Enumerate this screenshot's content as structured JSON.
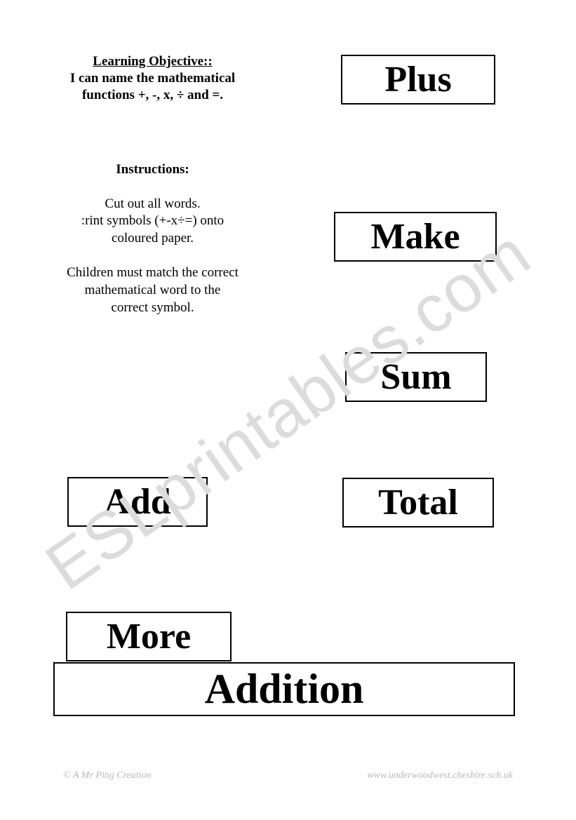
{
  "objective": {
    "title": "Learning Objective::",
    "body": "I can name the mathematical functions +, -, x, ÷ and =."
  },
  "instructions": {
    "title": "Instructions:",
    "line1": "Cut out all words.",
    "line2": ":rint symbols (+-x÷=) onto coloured paper.",
    "line3": "Children must match the correct mathematical word to the correct symbol."
  },
  "cards": {
    "plus": "Plus",
    "make": "Make",
    "sum": "Sum",
    "add": "Add",
    "total": "Total",
    "more": "More",
    "addition": "Addition"
  },
  "footer": {
    "left": "© A Mr Ping Creation",
    "right": "www.underwoodwest.cheshire.sch.uk"
  },
  "watermark": "ESLprintables.com",
  "styles": {
    "card_border_color": "#000000",
    "card_font_size": 52,
    "card_font_weight": "bold",
    "body_font": "Times New Roman",
    "background_color": "#ffffff",
    "text_color": "#000000",
    "footer_color": "#b8b8b8",
    "watermark_color": "#dcdcdc",
    "watermark_rotation_deg": -35
  }
}
